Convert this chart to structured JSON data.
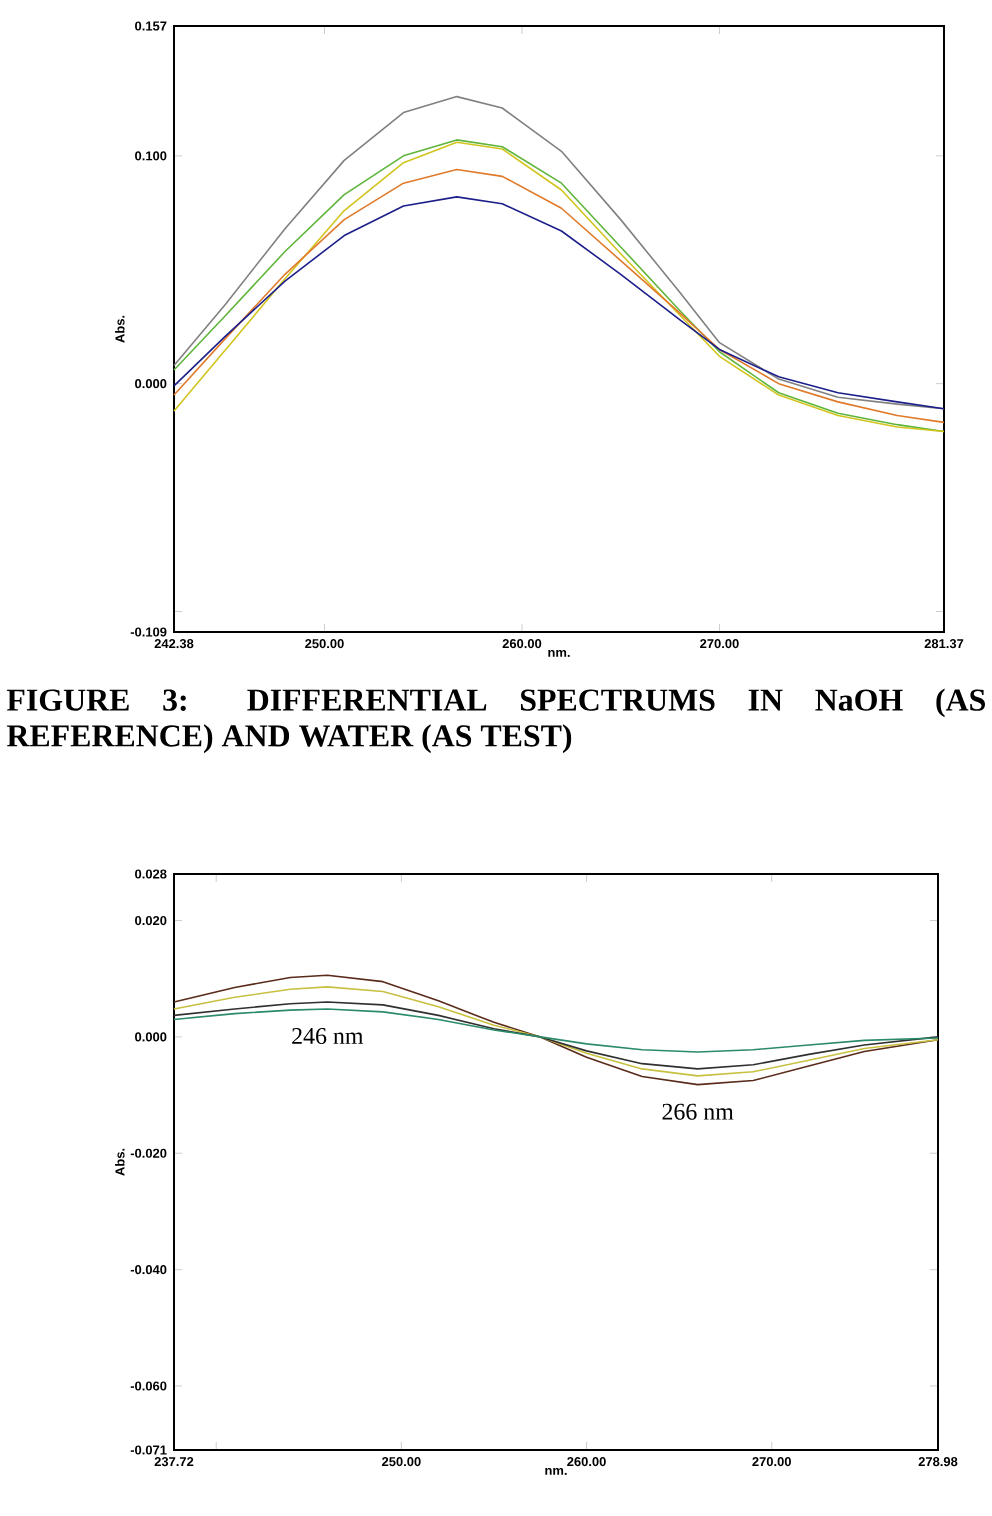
{
  "chart_data": [
    {
      "type": "line",
      "xlabel": "nm.",
      "ylabel": "Abs.",
      "xlim": [
        242.38,
        281.37
      ],
      "ylim": [
        -0.109,
        0.157
      ],
      "xticks": [
        242.38,
        {
          "value": 250,
          "label": "250.00"
        },
        {
          "value": 260,
          "label": "260.00"
        },
        {
          "value": 270,
          "label": "270.00"
        },
        281.37
      ],
      "yticks": [
        -0.109,
        {
          "value": -0.1,
          "label": null
        },
        {
          "value": 0,
          "label": "0.000"
        },
        {
          "value": 0.1,
          "label": "0.100"
        },
        0.157
      ],
      "x": [
        242.38,
        245,
        248,
        251,
        254,
        256.7,
        259,
        262,
        265,
        268,
        270,
        273,
        276,
        279,
        281.37
      ],
      "series": [
        {
          "color": "#808080",
          "values": [
            0.008,
            0.035,
            0.068,
            0.098,
            0.119,
            0.126,
            0.121,
            0.102,
            0.072,
            0.04,
            0.018,
            0.002,
            -0.006,
            -0.009,
            -0.011
          ]
        },
        {
          "color": "#5fb53a",
          "values": [
            0.006,
            0.03,
            0.058,
            0.083,
            0.1,
            0.107,
            0.104,
            0.088,
            0.06,
            0.032,
            0.014,
            -0.004,
            -0.013,
            -0.018,
            -0.021
          ]
        },
        {
          "color": "#d2c41e",
          "values": [
            -0.012,
            0.015,
            0.046,
            0.076,
            0.097,
            0.106,
            0.103,
            0.085,
            0.057,
            0.03,
            0.012,
            -0.005,
            -0.014,
            -0.019,
            -0.021
          ]
        },
        {
          "color": "#e07a2a",
          "values": [
            -0.005,
            0.02,
            0.048,
            0.072,
            0.088,
            0.094,
            0.091,
            0.077,
            0.054,
            0.031,
            0.015,
            0.0,
            -0.008,
            -0.014,
            -0.017
          ]
        },
        {
          "color": "#1c1f8a",
          "values": [
            -0.001,
            0.021,
            0.045,
            0.065,
            0.078,
            0.082,
            0.079,
            0.067,
            0.048,
            0.028,
            0.015,
            0.003,
            -0.004,
            -0.008,
            -0.011
          ]
        }
      ],
      "annotations": [
        "FIGURE 3: DIFFERENTIAL SPECTRUMS IN NaOH (AS REFERENCE) AND WATER (AS TEST)"
      ],
      "grid": false
    },
    {
      "type": "line",
      "xlabel": "nm.",
      "ylabel": "Abs.",
      "xlim": [
        237.72,
        278.98
      ],
      "ylim": [
        -0.071,
        0.028
      ],
      "xticks": [
        237.72,
        {
          "value": 240,
          "label": null
        },
        {
          "value": 250,
          "label": "250.00"
        },
        {
          "value": 260,
          "label": "260.00"
        },
        {
          "value": 270,
          "label": "270.00"
        },
        278.98
      ],
      "yticks": [
        -0.071,
        {
          "value": -0.06,
          "label": "-0.060"
        },
        {
          "value": -0.04,
          "label": "-0.040"
        },
        {
          "value": -0.02,
          "label": "-0.020"
        },
        {
          "value": 0,
          "label": "0.000"
        },
        {
          "value": 0.02,
          "label": "0.020"
        },
        0.028
      ],
      "x": [
        237.72,
        241,
        244,
        246,
        249,
        252,
        255,
        257.5,
        260,
        263,
        266,
        269,
        272,
        275,
        278.98
      ],
      "series": [
        {
          "color": "#5a2a1a",
          "values": [
            0.006,
            0.0085,
            0.0102,
            0.0106,
            0.0095,
            0.0062,
            0.0025,
            0.0,
            -0.0035,
            -0.0068,
            -0.0082,
            -0.0075,
            -0.005,
            -0.0025,
            -0.0005
          ]
        },
        {
          "color": "#c8c040",
          "values": [
            0.0048,
            0.0068,
            0.0082,
            0.0086,
            0.0078,
            0.0052,
            0.002,
            0.0,
            -0.0028,
            -0.0055,
            -0.0067,
            -0.006,
            -0.004,
            -0.002,
            -0.0005
          ]
        },
        {
          "color": "#303030",
          "values": [
            0.0037,
            0.0048,
            0.0057,
            0.006,
            0.0055,
            0.0037,
            0.0014,
            0.0,
            -0.0024,
            -0.0046,
            -0.0055,
            -0.0048,
            -0.003,
            -0.0014,
            0.0
          ]
        },
        {
          "color": "#2a8a6a",
          "values": [
            0.003,
            0.004,
            0.0046,
            0.0048,
            0.0043,
            0.003,
            0.0012,
            0.0,
            -0.0012,
            -0.0022,
            -0.0026,
            -0.0022,
            -0.0014,
            -0.0006,
            -0.0002
          ]
        }
      ],
      "annotations": [
        {
          "text": "246 nm",
          "x": 246,
          "y": 0.0048
        },
        {
          "text": "266 nm",
          "x": 266,
          "y": -0.0082
        }
      ],
      "grid": false
    }
  ]
}
